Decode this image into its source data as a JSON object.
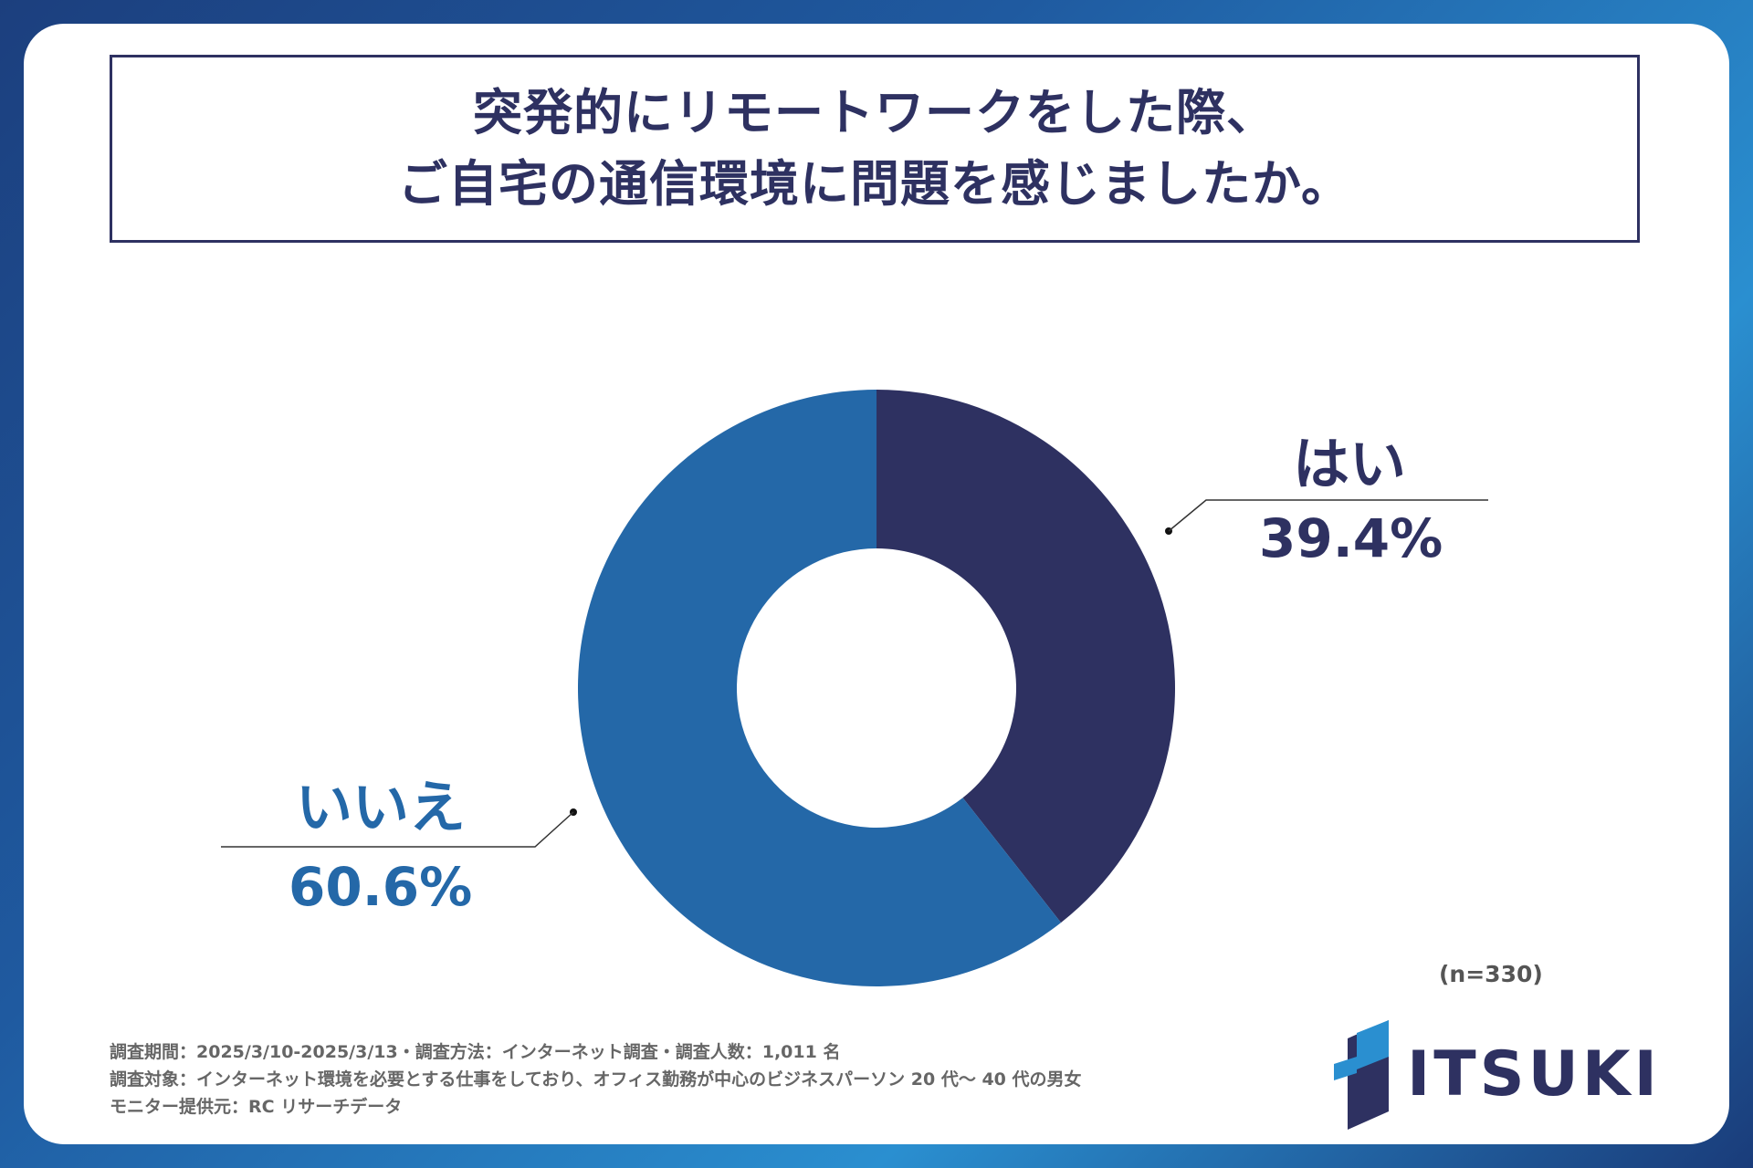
{
  "title": {
    "line1": "突発的にリモートワークをした際、",
    "line2": "ご自宅の通信環境に問題を感じましたか。"
  },
  "chart_data": {
    "type": "pie",
    "donut": true,
    "title": "突発的にリモートワークをした際、ご自宅の通信環境に問題を感じましたか。",
    "categories": [
      "はい",
      "いいえ"
    ],
    "values": [
      39.4,
      60.6
    ],
    "value_labels": [
      "39.4%",
      "60.6%"
    ],
    "colors": [
      "#2e3161",
      "#2468a8"
    ],
    "sample_size": "(n=330)"
  },
  "footer": {
    "line1": "調査期間：2025/3/10-2025/3/13・調査方法：インターネット調査・調査人数：1,011 名",
    "line2": "調査対象：インターネット環境を必要とする仕事をしており、オフィス勤務が中心のビジネスパーソン 20 代〜 40 代の男女",
    "line3": "モニター提供元：RC リサーチデータ"
  },
  "logo": {
    "text": "ITSUKI",
    "colors": [
      "#2e3161",
      "#2a8fd0"
    ]
  }
}
